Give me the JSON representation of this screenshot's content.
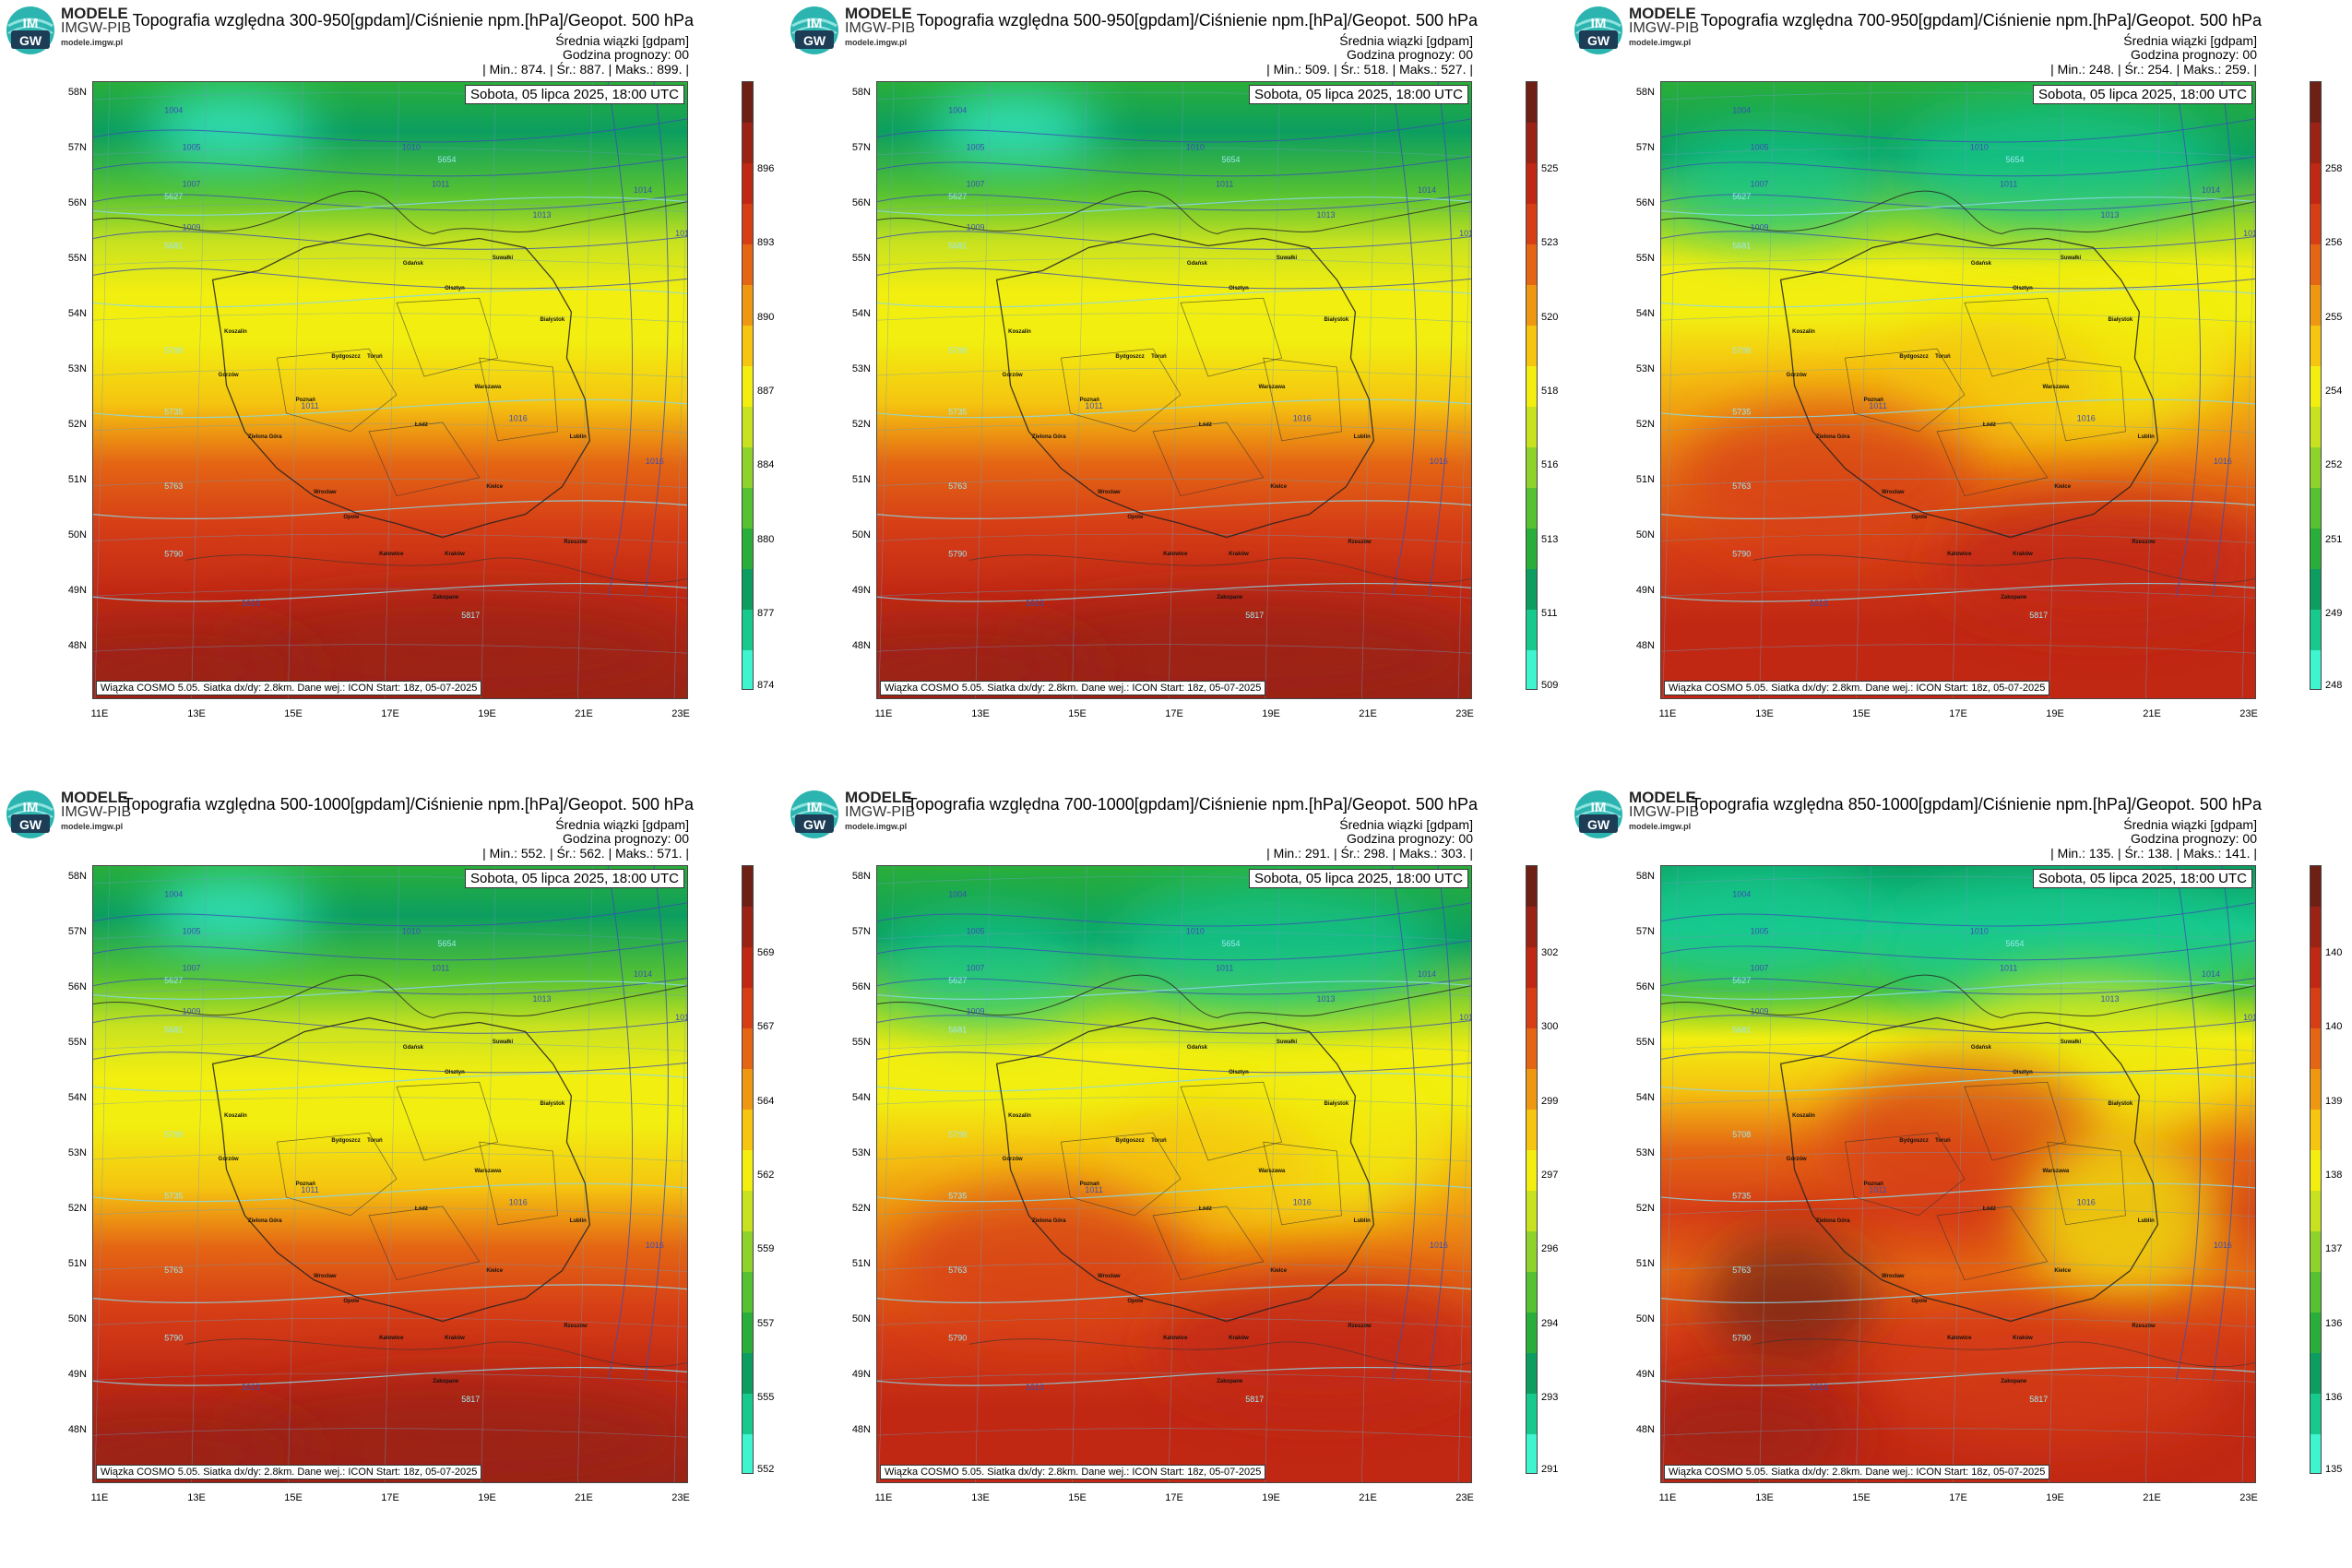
{
  "header": {
    "brand_name": "MODELE",
    "brand_org": "IMGW-PIB",
    "brand_site": "modele.imgw.pl",
    "logo_text_top": "IM",
    "logo_text_bottom": "GW"
  },
  "common": {
    "subtitle": "Średnia wiązki [gdpam]",
    "hour": "Godzina prognozy: 00",
    "date": "Sobota, 05 lipca 2025, 18:00 UTC",
    "credit": "Wiązka COSMO 5.05. Siatka dx/dy: 2.8km. Dane wej.: ICON Start: 18z, 05-07-2025"
  },
  "lat_labels": [
    "58N",
    "57N",
    "56N",
    "55N",
    "54N",
    "53N",
    "52N",
    "51N",
    "50N",
    "49N",
    "48N"
  ],
  "lon_labels": [
    "11E",
    "13E",
    "15E",
    "17E",
    "19E",
    "21E",
    "23E"
  ],
  "cities": [
    "Gdańsk",
    "Olsztyn",
    "Suwałki",
    "Koszalin",
    "Białystok",
    "Bydgoszcz",
    "Toruń",
    "Gorzów",
    "Poznań",
    "Warszawa",
    "Łódź",
    "Zielona Góra",
    "Lublin",
    "Wrocław",
    "Kielce",
    "Opole",
    "Katowice",
    "Kraków",
    "Rzeszów",
    "Zakopane"
  ],
  "isolines": {
    "pressure": [
      "1004",
      "1005",
      "1007",
      "1009",
      "1010",
      "1011",
      "1011",
      "1013",
      "1014",
      "1015",
      "1016",
      "1016",
      "1013"
    ],
    "geopotential": [
      "5627",
      "5654",
      "5681",
      "5708",
      "5735",
      "5763",
      "5790",
      "5817"
    ]
  },
  "colors": {
    "ramp": [
      "#3ff5d0",
      "#18c98e",
      "#0c9e60",
      "#2aae3a",
      "#55c232",
      "#8fd32a",
      "#c8e220",
      "#f2ee10",
      "#f5c510",
      "#ef9712",
      "#e46514",
      "#d63e16",
      "#c02814",
      "#9a2316",
      "#6f2014"
    ]
  },
  "panels": [
    {
      "title": "Topografia względna 300-950[gpdam]/Ciśnienie npm.[hPa]/Geopot. 500 hPa",
      "stats": "| Min.:    874. | Śr.:    887. | Maks.:    899. |",
      "colorbar_ticks": [
        "896",
        "893",
        "890",
        "887",
        "884",
        "880",
        "877",
        "874"
      ],
      "field": {
        "min": 874,
        "mean": 887,
        "max": 899
      }
    },
    {
      "title": "Topografia względna 500-950[gpdam]/Ciśnienie npm.[hPa]/Geopot. 500 hPa",
      "stats": "| Min.:    509. | Śr.:    518. | Maks.:    527. |",
      "colorbar_ticks": [
        "525",
        "523",
        "520",
        "518",
        "516",
        "513",
        "511",
        "509"
      ],
      "field": {
        "min": 509,
        "mean": 518,
        "max": 527
      }
    },
    {
      "title": "Topografia względna 700-950[gpdam]/Ciśnienie npm.[hPa]/Geopot. 500 hPa",
      "stats": "| Min.:    248. | Śr.:    254. | Maks.:    259. |",
      "colorbar_ticks": [
        "258",
        "256",
        "255",
        "254",
        "252",
        "251",
        "249",
        "248"
      ],
      "field": {
        "min": 248,
        "mean": 254,
        "max": 259
      }
    },
    {
      "title": "Topografia względna 500-1000[gpdam]/Ciśnienie npm.[hPa]/Geopot. 500 hPa",
      "stats": "| Min.:    552. | Śr.:    562. | Maks.:    571. |",
      "colorbar_ticks": [
        "569",
        "567",
        "564",
        "562",
        "559",
        "557",
        "555",
        "552"
      ],
      "field": {
        "min": 552,
        "mean": 562,
        "max": 571
      }
    },
    {
      "title": "Topografia względna 700-1000[gpdam]/Ciśnienie npm.[hPa]/Geopot. 500 hPa",
      "stats": "| Min.:    291. | Śr.:    298. | Maks.:    303. |",
      "colorbar_ticks": [
        "302",
        "300",
        "299",
        "297",
        "296",
        "294",
        "293",
        "291"
      ],
      "field": {
        "min": 291,
        "mean": 298,
        "max": 303
      }
    },
    {
      "title": "Topografia względna 850-1000[gpdam]/Ciśnienie npm.[hPa]/Geopot. 500 hPa",
      "stats": "| Min.:    135. | Śr.:    138. | Maks.:    141. |",
      "colorbar_ticks": [
        "140",
        "140",
        "139",
        "138",
        "137",
        "136",
        "136",
        "135"
      ],
      "field": {
        "min": 135,
        "mean": 138,
        "max": 141
      }
    }
  ]
}
